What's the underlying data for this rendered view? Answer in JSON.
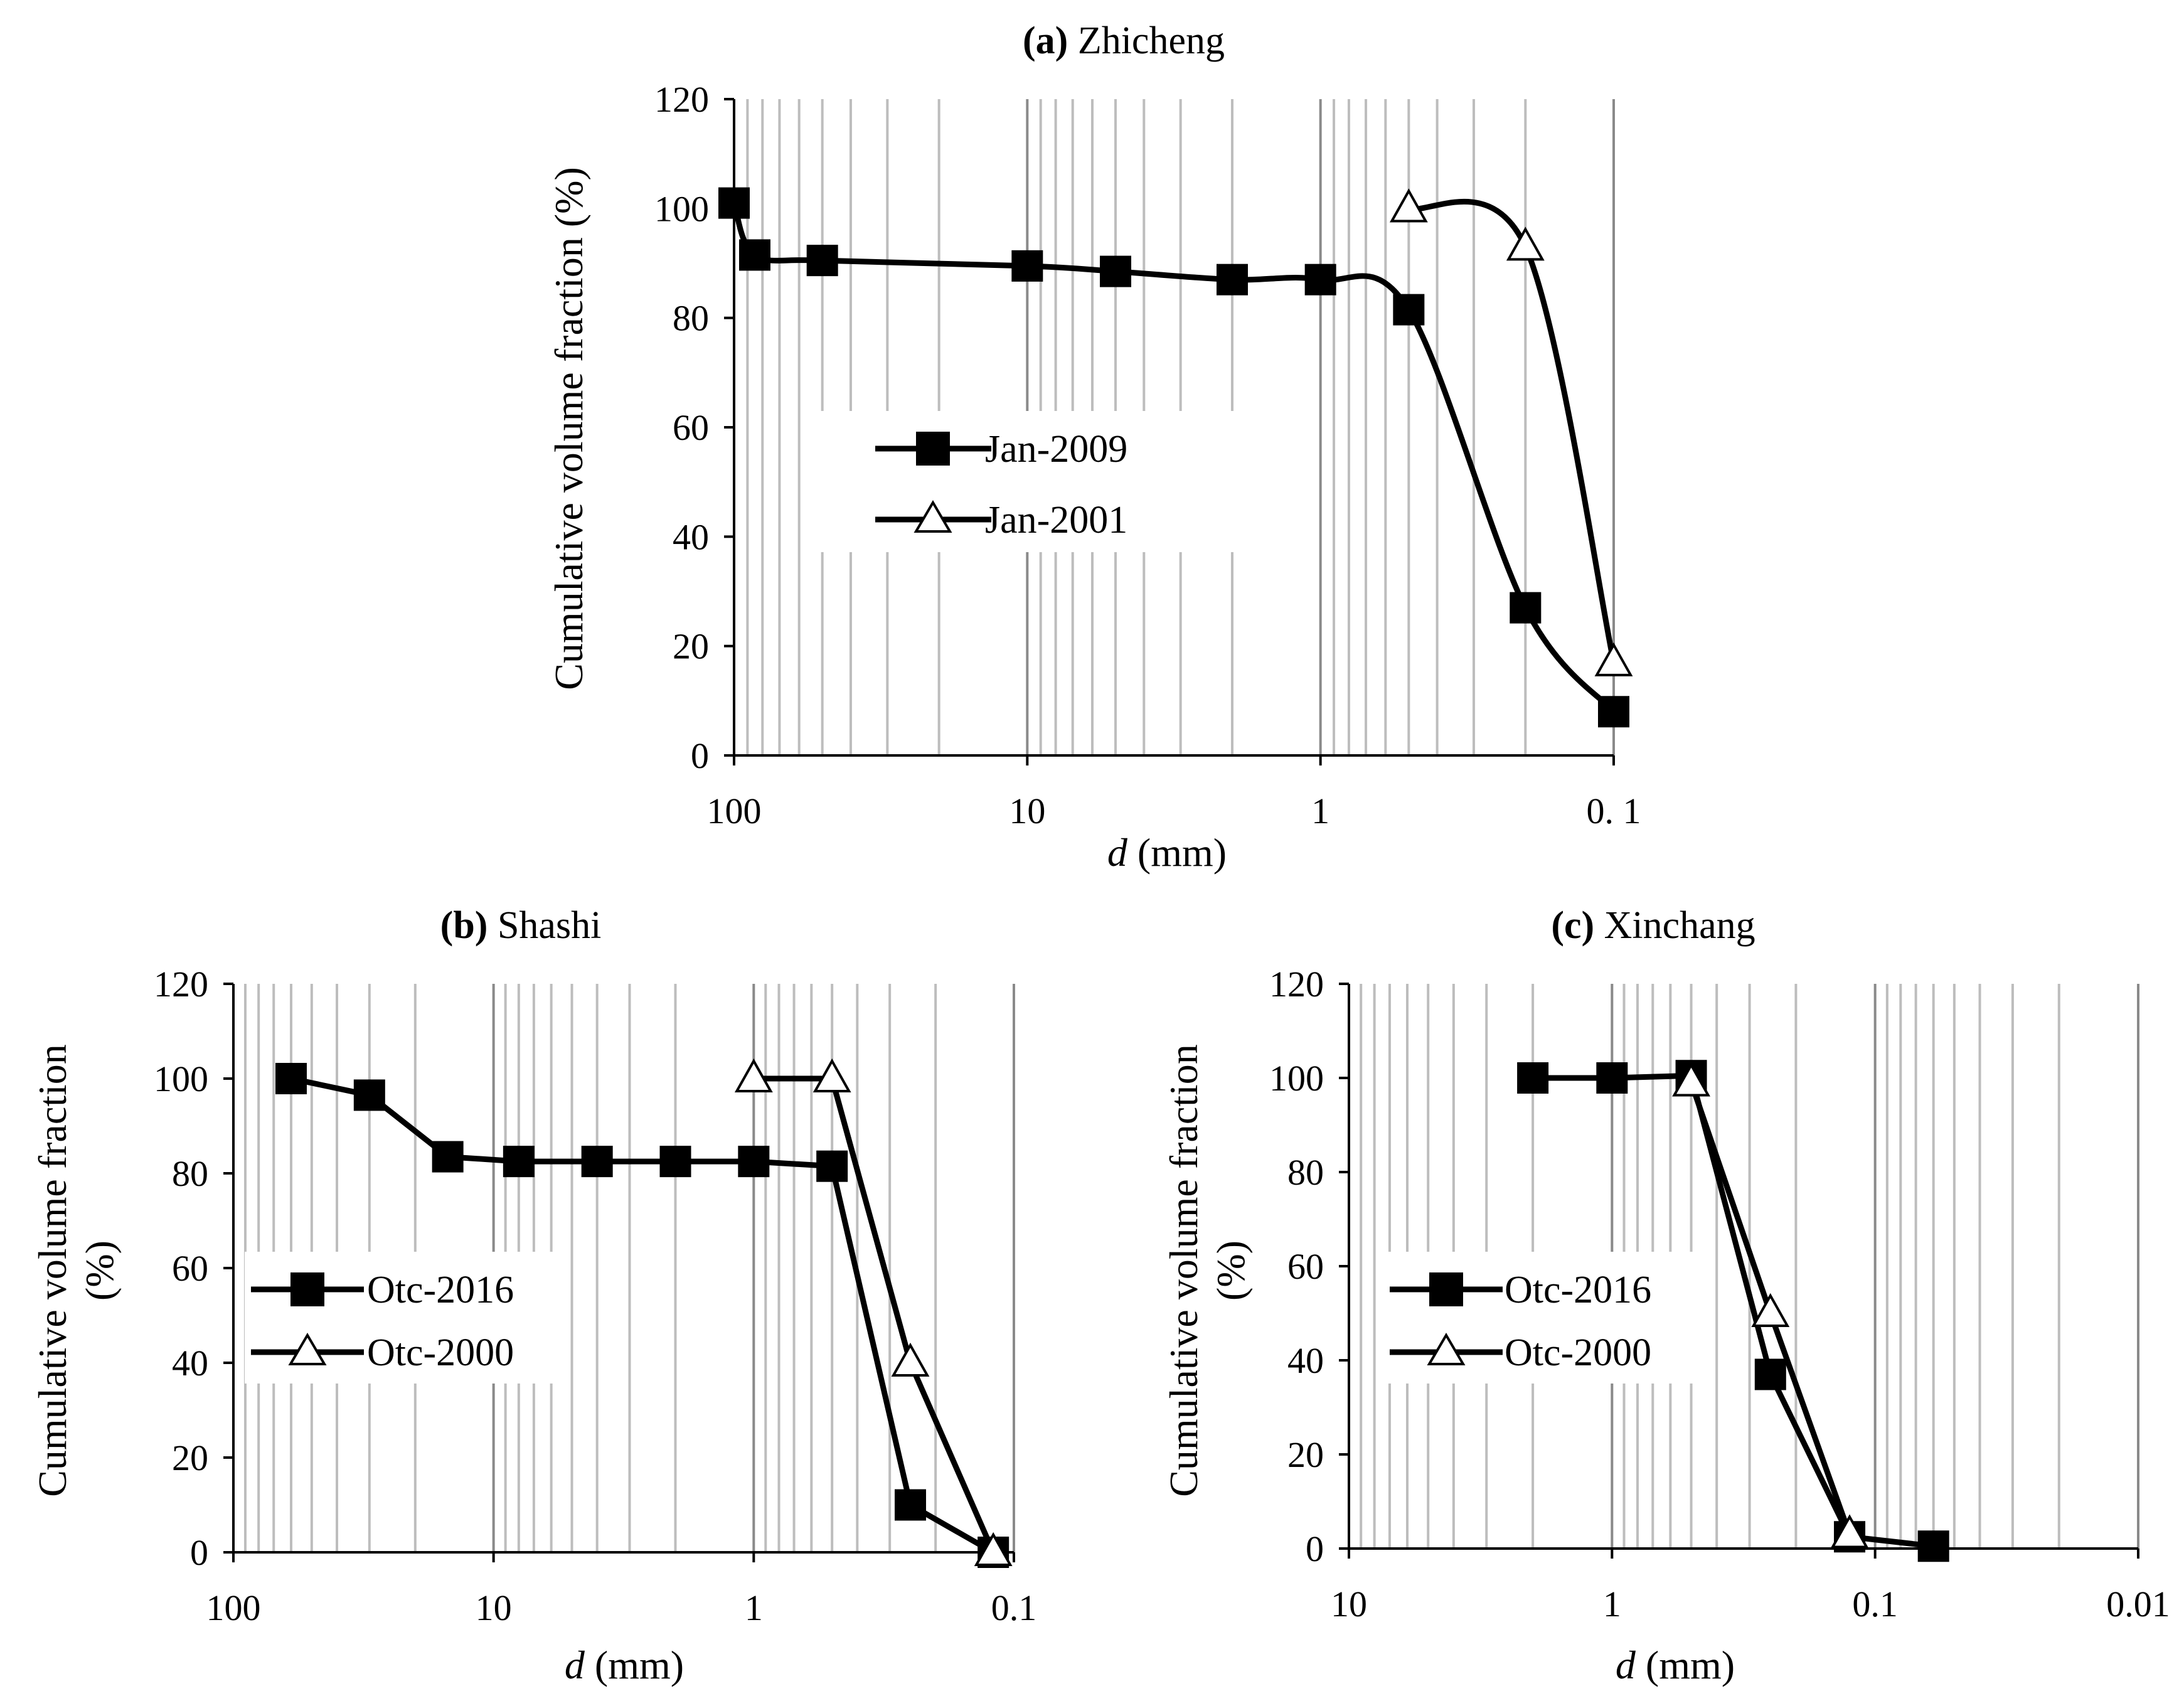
{
  "chart_data": [
    {
      "id": "a",
      "type": "line",
      "title_prefix": "(a)",
      "title": "Zhicheng",
      "xlabel_var": "d",
      "xlabel_unit": " (mm)",
      "ylabel": "Cumulative volume fraction (%)",
      "x_scale": "log",
      "x_reversed": true,
      "xlim": [
        100,
        0.1
      ],
      "ylim": [
        0,
        120
      ],
      "yticks": [
        0,
        20,
        40,
        60,
        80,
        100,
        120
      ],
      "xticks": [
        {
          "value": 100,
          "label": "100"
        },
        {
          "value": 10,
          "label": "10"
        },
        {
          "value": 1,
          "label": "1"
        },
        {
          "value": 0.1,
          "label": "0. 1"
        }
      ],
      "series": [
        {
          "name": "Jan-2009",
          "marker": "square-filled",
          "x": [
            100,
            85,
            50,
            10,
            5,
            2,
            1,
            0.5,
            0.2,
            0.1
          ],
          "y": [
            101,
            91.5,
            90.5,
            89.5,
            88.5,
            87,
            87,
            81.5,
            27,
            8
          ]
        },
        {
          "name": "Jan-2001",
          "marker": "triangle-open",
          "x": [
            0.5,
            0.2,
            0.1
          ],
          "y": [
            100,
            93,
            17
          ]
        }
      ]
    },
    {
      "id": "b",
      "type": "line",
      "title_prefix": "(b)",
      "title": "Shashi",
      "xlabel_var": "d",
      "xlabel_unit": " (mm)",
      "ylabel": "Cumulative volume fraction (%)",
      "x_scale": "log",
      "x_reversed": true,
      "xlim": [
        100,
        0.1
      ],
      "ylim": [
        0,
        120
      ],
      "yticks": [
        0,
        20,
        40,
        60,
        80,
        100,
        120
      ],
      "xticks": [
        {
          "value": 100,
          "label": "100"
        },
        {
          "value": 10,
          "label": "10"
        },
        {
          "value": 1,
          "label": "1"
        },
        {
          "value": 0.1,
          "label": "0.1"
        }
      ],
      "series": [
        {
          "name": "Otc-2016",
          "marker": "square-filled",
          "x": [
            60,
            30,
            15,
            8,
            4,
            2,
            1,
            0.5,
            0.25,
            0.12
          ],
          "y": [
            100,
            96.5,
            83.5,
            82.5,
            82.5,
            82.5,
            82.5,
            81.5,
            10,
            0
          ]
        },
        {
          "name": "Otc-2000",
          "marker": "triangle-open",
          "x": [
            1,
            0.5,
            0.25,
            0.12
          ],
          "y": [
            100,
            100,
            40,
            0
          ]
        }
      ]
    },
    {
      "id": "c",
      "type": "line",
      "title_prefix": "(c)",
      "title": "Xinchang",
      "xlabel_var": "d",
      "xlabel_unit": " (mm)",
      "ylabel": "Cumulative volume fraction (%)",
      "x_scale": "log",
      "x_reversed": true,
      "xlim": [
        10,
        0.01
      ],
      "ylim": [
        0,
        120
      ],
      "yticks": [
        0,
        20,
        40,
        60,
        80,
        100,
        120
      ],
      "xticks": [
        {
          "value": 10,
          "label": "10"
        },
        {
          "value": 1,
          "label": "1"
        },
        {
          "value": 0.1,
          "label": "0.1"
        },
        {
          "value": 0.01,
          "label": "0.01"
        }
      ],
      "series": [
        {
          "name": "Otc-2016",
          "marker": "square-filled",
          "x": [
            2,
            1,
            0.5,
            0.25,
            0.125,
            0.06
          ],
          "y": [
            100,
            100,
            100.5,
            37,
            2.5,
            0.5
          ]
        },
        {
          "name": "Otc-2000",
          "marker": "triangle-open",
          "x": [
            0.5,
            0.25,
            0.125
          ],
          "y": [
            99,
            50,
            3
          ]
        }
      ]
    }
  ]
}
